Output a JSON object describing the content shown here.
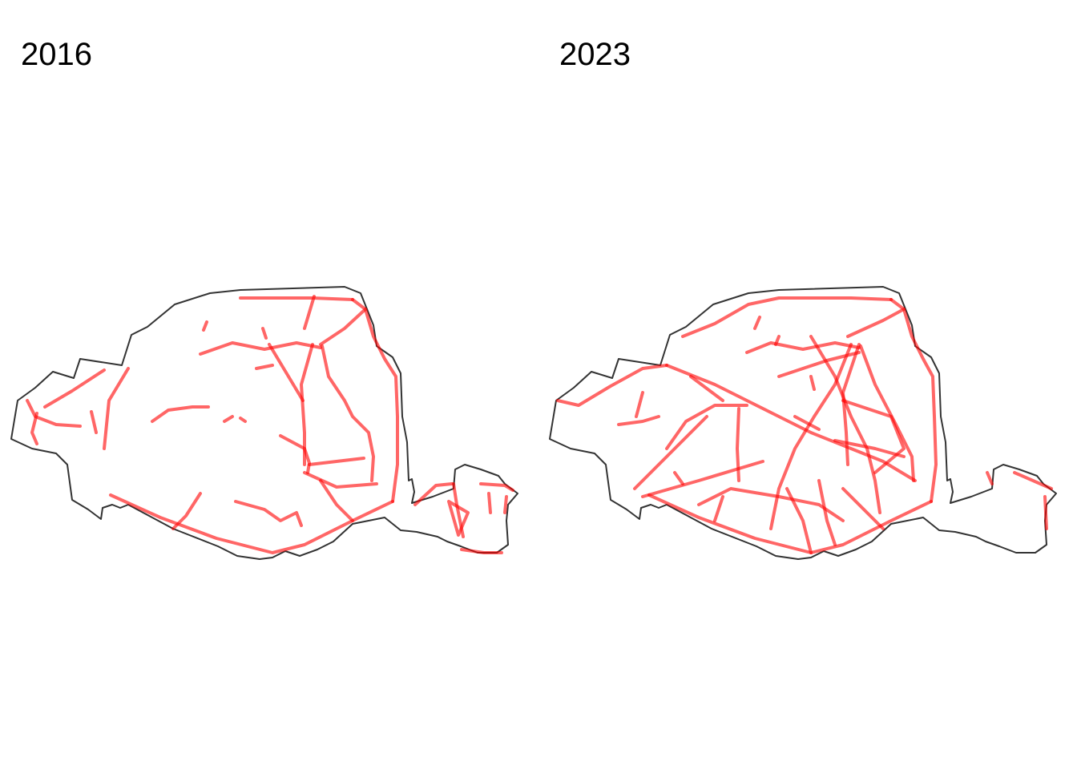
{
  "colors": {
    "lane": "#ff0000",
    "boundary": "#333333",
    "background": "#ffffff"
  },
  "panels": [
    {
      "title": "2016"
    },
    {
      "title": "2023"
    }
  ]
}
